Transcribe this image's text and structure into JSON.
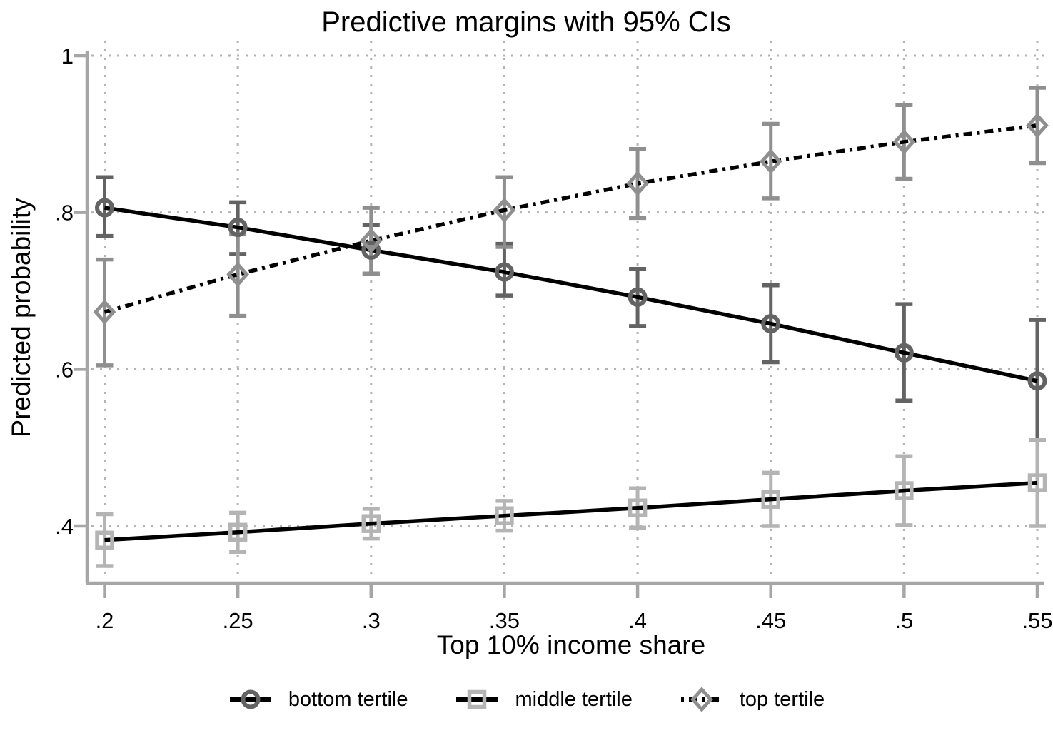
{
  "title": "Predictive margins with 95% CIs",
  "chart_data": {
    "type": "line",
    "title": "Predictive margins with 95% CIs",
    "xlabel": "Top 10% income share",
    "ylabel": "Predicted probability",
    "x": [
      0.2,
      0.25,
      0.3,
      0.35,
      0.4,
      0.45,
      0.5,
      0.55
    ],
    "x_tick_labels": [
      ".2",
      ".25",
      ".3",
      ".35",
      ".4",
      ".45",
      ".5",
      ".55"
    ],
    "y_ticks": [
      0.4,
      0.6,
      0.8,
      1
    ],
    "y_tick_labels": [
      ".4",
      ".6",
      ".8",
      "1"
    ],
    "xlim": [
      0.2,
      0.55
    ],
    "ylim": [
      0.325,
      1.0
    ],
    "grid": "dotted gridlines at every x tick and y tick",
    "legend_position": "bottom center",
    "error_bars": "95% confidence intervals with end caps",
    "series": [
      {
        "name": "bottom tertile",
        "marker": "circle",
        "line_style": "solid",
        "line_color": "#000000",
        "marker_color": "#636363",
        "values": [
          0.806,
          0.781,
          0.752,
          0.724,
          0.692,
          0.658,
          0.621,
          0.585
        ],
        "ci_low": [
          0.77,
          0.747,
          0.722,
          0.694,
          0.655,
          0.609,
          0.56,
          0.51
        ],
        "ci_high": [
          0.845,
          0.813,
          0.784,
          0.76,
          0.728,
          0.707,
          0.683,
          0.663
        ]
      },
      {
        "name": "middle tertile",
        "marker": "square",
        "line_style": "solid",
        "line_color": "#000000",
        "marker_color": "#b4b4b4",
        "values": [
          0.382,
          0.392,
          0.403,
          0.413,
          0.423,
          0.434,
          0.445,
          0.455
        ],
        "ci_low": [
          0.349,
          0.367,
          0.384,
          0.394,
          0.398,
          0.4,
          0.401,
          0.4
        ],
        "ci_high": [
          0.415,
          0.417,
          0.422,
          0.432,
          0.448,
          0.468,
          0.489,
          0.51
        ]
      },
      {
        "name": "top tertile",
        "marker": "diamond",
        "line_style": "dash-dot",
        "line_color": "#000000",
        "marker_color": "#8f8f8f",
        "values": [
          0.673,
          0.721,
          0.764,
          0.803,
          0.837,
          0.865,
          0.89,
          0.911
        ],
        "ci_low": [
          0.605,
          0.668,
          0.722,
          0.756,
          0.793,
          0.818,
          0.843,
          0.863
        ],
        "ci_high": [
          0.74,
          0.772,
          0.806,
          0.845,
          0.881,
          0.913,
          0.937,
          0.959
        ]
      }
    ],
    "colors": {
      "background": "#ffffff",
      "grid": "#b3b3b3",
      "axis": "#a6a6a6",
      "text": "#000000"
    }
  }
}
